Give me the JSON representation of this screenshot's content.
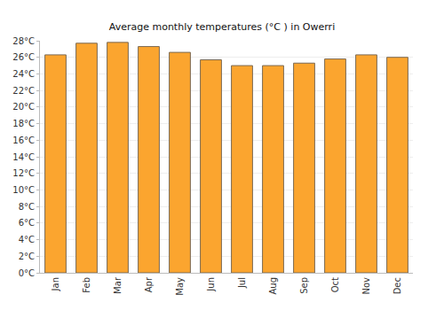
{
  "chart_data": {
    "type": "bar",
    "title": "Average monthly temperatures (°C ) in Owerri",
    "categories": [
      "Jan",
      "Feb",
      "Mar",
      "Apr",
      "May",
      "Jun",
      "Jul",
      "Aug",
      "Sep",
      "Oct",
      "Nov",
      "Dec"
    ],
    "values": [
      26.3,
      27.7,
      27.8,
      27.3,
      26.6,
      25.7,
      25.0,
      25.0,
      25.3,
      25.8,
      26.3,
      26.0
    ],
    "color": "#fba52f",
    "ylim": [
      0,
      28
    ],
    "yticks": [
      {
        "value": 0,
        "label": "0°C"
      },
      {
        "value": 2,
        "label": "2°C"
      },
      {
        "value": 4,
        "label": "4°C"
      },
      {
        "value": 6,
        "label": "6°C"
      },
      {
        "value": 8,
        "label": "8°C"
      },
      {
        "value": 10,
        "label": "10°C"
      },
      {
        "value": 12,
        "label": "12°C"
      },
      {
        "value": 14,
        "label": "14°C"
      },
      {
        "value": 16,
        "label": "16°C"
      },
      {
        "value": 18,
        "label": "18°C"
      },
      {
        "value": 20,
        "label": "20°C"
      },
      {
        "value": 22,
        "label": "22°C"
      },
      {
        "value": 24,
        "label": "24°C"
      },
      {
        "value": 26,
        "label": "26°C"
      },
      {
        "value": 28,
        "label": "28°C"
      }
    ],
    "grid": true
  }
}
